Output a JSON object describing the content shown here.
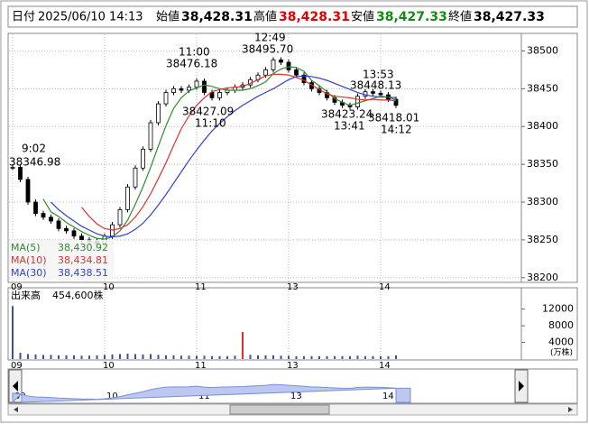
{
  "header": {
    "date_label": "日付",
    "date": "2025/06/10 14:13",
    "open_label": "始値",
    "open": "38,428.31",
    "high_label": "高値",
    "high": "38,428.31",
    "low_label": "安値",
    "low": "38,427.33",
    "close_label": "終値",
    "close": "38,427.33"
  },
  "chart_data": {
    "type": "candlestick",
    "categories": [
      "09",
      null,
      null,
      null,
      null,
      null,
      null,
      null,
      null,
      null,
      null,
      null,
      "10",
      null,
      null,
      null,
      null,
      null,
      null,
      null,
      null,
      null,
      null,
      null,
      "11",
      null,
      null,
      null,
      null,
      null,
      null,
      null,
      null,
      null,
      null,
      null,
      "13",
      null,
      null,
      null,
      null,
      null,
      null,
      null,
      null,
      null,
      null,
      null,
      "14",
      null,
      null
    ],
    "close": [
      38346,
      38330,
      38300,
      38285,
      38280,
      38275,
      38265,
      38262,
      38255,
      38250,
      38248,
      38245,
      38255,
      38270,
      38290,
      38320,
      38345,
      38370,
      38405,
      38430,
      38445,
      38450,
      38448,
      38452,
      38460,
      38445,
      38438,
      38445,
      38448,
      38452,
      38455,
      38462,
      38468,
      38475,
      38488,
      38485,
      38475,
      38468,
      38458,
      38450,
      38445,
      38438,
      38432,
      38428,
      38426,
      38440,
      38446,
      38444,
      38442,
      38436,
      38428
    ],
    "series": [
      {
        "name": "MA(5)",
        "last": "38,430.92",
        "color": "#2e8b2e",
        "values": [
          null,
          null,
          null,
          null,
          38304,
          38287,
          38281,
          38273,
          38267,
          38261,
          38256,
          38252,
          38251,
          38254,
          38262,
          38276,
          38297,
          38320,
          38346,
          38374,
          38401,
          38424,
          38438,
          38447,
          38451,
          38455,
          38453,
          38450,
          38448,
          38448,
          38448,
          38450,
          38454,
          38459,
          38470,
          38476,
          38479,
          38478,
          38473,
          38461,
          38454,
          38446,
          38437,
          38432,
          38428,
          38431,
          38434,
          38437,
          38440,
          38439,
          38435
        ]
      },
      {
        "name": "MA(10)",
        "last": "38,434.81",
        "color": "#e03030",
        "values": [
          null,
          null,
          null,
          null,
          null,
          null,
          null,
          null,
          null,
          38293,
          38281,
          38271,
          38265,
          38263,
          38265,
          38270,
          38280,
          38294,
          38311,
          38331,
          38352,
          38375,
          38397,
          38414,
          38428,
          38438,
          38446,
          38449,
          38451,
          38452,
          38453,
          38457,
          38462,
          38467,
          38469,
          38469,
          38468,
          38465,
          38461,
          38455,
          38449,
          38443,
          38440,
          38439,
          38438,
          38436,
          38435,
          38436,
          38435,
          38435,
          38434
        ]
      },
      {
        "name": "MA(30)",
        "last": "38,438.51",
        "color": "#3040d0",
        "values": [
          null,
          null,
          null,
          null,
          null,
          38300,
          38290,
          38282,
          38275,
          38268,
          38263,
          38258,
          38255,
          38254,
          38255,
          38258,
          38264,
          38272,
          38283,
          38296,
          38310,
          38325,
          38340,
          38355,
          38369,
          38382,
          38394,
          38404,
          38413,
          38421,
          38428,
          38434,
          38440,
          38445,
          38450,
          38456,
          38462,
          38466,
          38467,
          38466,
          38464,
          38461,
          38457,
          38453,
          38449,
          38445,
          38442,
          38440,
          38439,
          38439,
          38438
        ]
      }
    ],
    "ylim": [
      38195,
      38522
    ],
    "yticks": [
      38200,
      38250,
      38300,
      38350,
      38400,
      38450,
      38500
    ],
    "grid": true,
    "annotations": [
      {
        "time": "9:02",
        "price": "38346.98"
      },
      {
        "time": "11:00",
        "price": "38476.18"
      },
      {
        "time": "12:49",
        "price": "38495.70"
      },
      {
        "time": "13:53",
        "price": "38448.13"
      },
      {
        "time": "11:10",
        "price": "38427.09"
      },
      {
        "time": "13:41",
        "price": "38423.24"
      },
      {
        "time": "14:12",
        "price": "38418.01"
      }
    ],
    "volume": {
      "label": "出来高",
      "total": "454,600株",
      "unit": "(万株)",
      "color": "#3a4fa8",
      "spike_color": "#e03030",
      "values": [
        12700,
        1500,
        1200,
        1100,
        1000,
        1000,
        900,
        900,
        900,
        800,
        800,
        900,
        1000,
        1100,
        1200,
        1300,
        1200,
        1100,
        1200,
        1000,
        900,
        900,
        800,
        800,
        800,
        800,
        700,
        700,
        700,
        800,
        6500,
        1000,
        900,
        900,
        900,
        800,
        800,
        700,
        700,
        700,
        700,
        700,
        700,
        700,
        700,
        800,
        700,
        700,
        700,
        700,
        900
      ],
      "ylim": [
        0,
        16900
      ],
      "yticks": [
        4000,
        8000,
        12000
      ]
    }
  }
}
